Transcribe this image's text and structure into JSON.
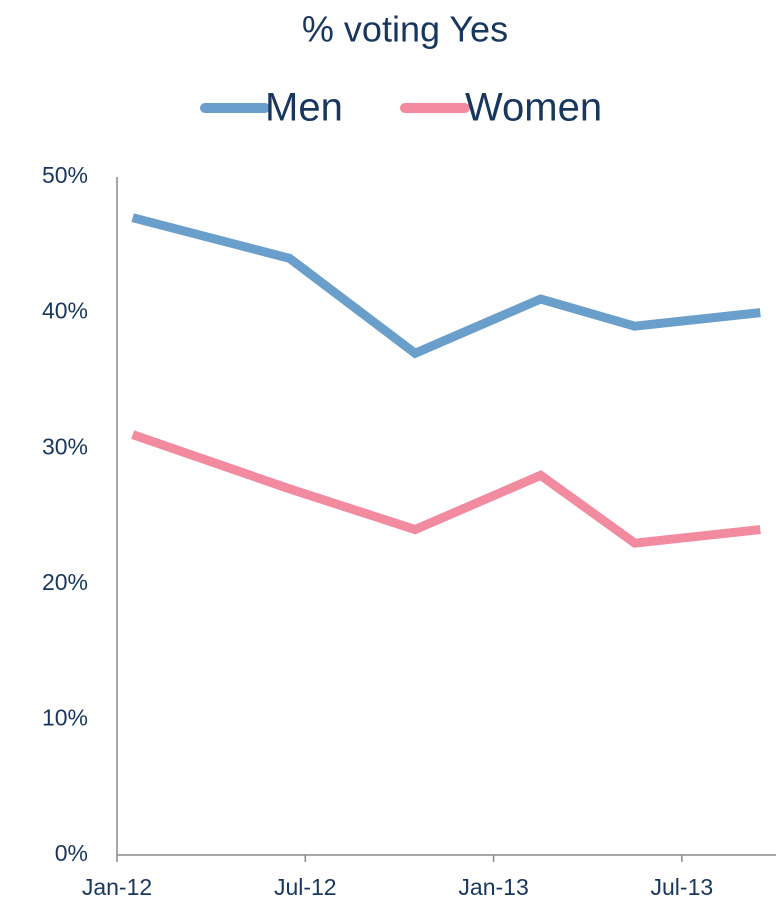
{
  "chart_data": {
    "type": "line",
    "title": "% voting Yes",
    "x": [
      "2012-01",
      "2012-06",
      "2012-10",
      "2013-02",
      "2013-05",
      "2013-09"
    ],
    "series": [
      {
        "name": "Men",
        "color": "#6a9fcb",
        "values": [
          47,
          44,
          37,
          41,
          39,
          40
        ]
      },
      {
        "name": "Women",
        "color": "#f28aa0",
        "values": [
          31,
          27,
          24,
          28,
          23,
          24
        ]
      }
    ],
    "xlim": [
      "2012-01",
      "2013-10"
    ],
    "xticks": [
      {
        "value": "2012-01",
        "label": "Jan-12"
      },
      {
        "value": "2012-07",
        "label": "Jul-12"
      },
      {
        "value": "2013-01",
        "label": "Jan-13"
      },
      {
        "value": "2013-07",
        "label": "Jul-13"
      }
    ],
    "ylim": [
      0,
      50
    ],
    "yticks": [
      {
        "value": 0,
        "label": "0%"
      },
      {
        "value": 10,
        "label": "10%"
      },
      {
        "value": 20,
        "label": "20%"
      },
      {
        "value": 30,
        "label": "30%"
      },
      {
        "value": 40,
        "label": "40%"
      },
      {
        "value": 50,
        "label": "50%"
      }
    ],
    "legend": "top"
  }
}
